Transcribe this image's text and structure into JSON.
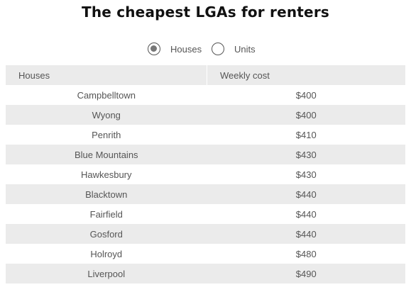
{
  "title": "The cheapest LGAs for renters",
  "toggle": {
    "options": [
      {
        "label": "Houses",
        "selected": true
      },
      {
        "label": "Units",
        "selected": false
      }
    ]
  },
  "table": {
    "headers": [
      "Houses",
      "Weekly cost"
    ],
    "rows": [
      {
        "area": "Campbelltown",
        "cost": "$400"
      },
      {
        "area": "Wyong",
        "cost": "$400"
      },
      {
        "area": "Penrith",
        "cost": "$410"
      },
      {
        "area": "Blue Mountains",
        "cost": "$430"
      },
      {
        "area": "Hawkesbury",
        "cost": "$430"
      },
      {
        "area": "Blacktown",
        "cost": "$440"
      },
      {
        "area": "Fairfield",
        "cost": "$440"
      },
      {
        "area": "Gosford",
        "cost": "$440"
      },
      {
        "area": "Holroyd",
        "cost": "$480"
      },
      {
        "area": "Liverpool",
        "cost": "$490"
      }
    ]
  }
}
